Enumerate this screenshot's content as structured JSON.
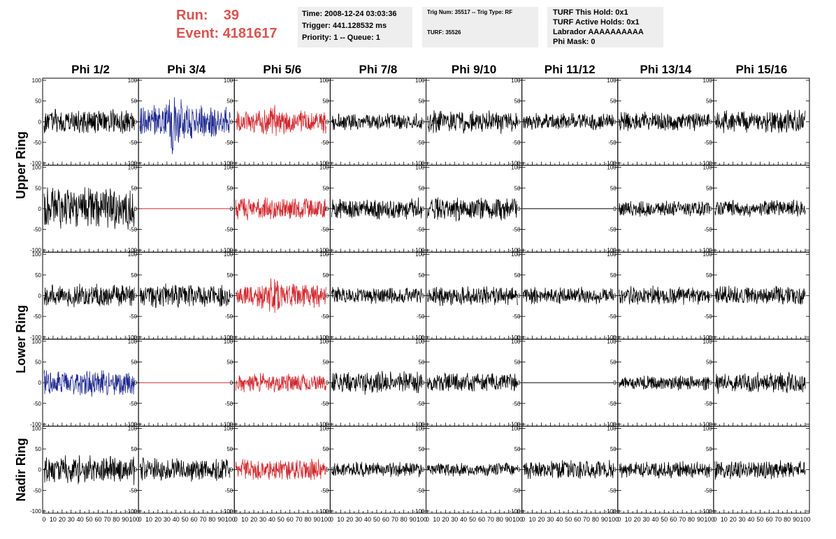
{
  "header": {
    "run_label": "Run:",
    "run_value": "39",
    "event_label": "Event:",
    "event_value": "4181617",
    "time": "Time: 2008-12-24 03:03:36",
    "trigger": "Trigger: 441.128532 ms",
    "priority": "Priority: 1 -- Queue: 1",
    "trig_num": "Trig Num: 35517 -- Trig Type: RF",
    "turf_num": "TURF: 35526",
    "turf_this_hold": "TURF This Hold: 0x1",
    "turf_active_holds": "TURF Active Holds: 0x1",
    "labrador": "Labrador AAAAAAAAAA",
    "phi_mask": "Phi Mask: 0"
  },
  "colors": {
    "accent_red": "#d9534f",
    "trace_black": "#000000",
    "trace_blue": "#1f2a8f",
    "trace_red": "#d0262c",
    "info_box_bg": "#eeeeee"
  },
  "chart_data": {
    "type": "line",
    "columns": [
      "Phi 1/2",
      "Phi 3/4",
      "Phi 5/6",
      "Phi 7/8",
      "Phi 9/10",
      "Phi 11/12",
      "Phi 13/14",
      "Phi 15/16"
    ],
    "row_groups": [
      {
        "label": "Upper Ring",
        "rows": [
          0,
          1
        ]
      },
      {
        "label": "Lower Ring",
        "rows": [
          2,
          3
        ]
      },
      {
        "label": "Nadir Ring",
        "rows": [
          4
        ]
      }
    ],
    "xlim": [
      0,
      100
    ],
    "ylim": [
      -100,
      100
    ],
    "x_tick_labels": [
      "0",
      "10",
      "20",
      "30",
      "40",
      "50",
      "60",
      "70",
      "80",
      "90",
      "100"
    ],
    "y_tick_labels": [
      "100",
      "50",
      "0",
      "-50",
      "-100"
    ],
    "panels": [
      [
        {
          "color": "black",
          "amp": 32,
          "flat": false
        },
        {
          "color": "blue",
          "amp": 45,
          "burst_amp": 85,
          "burst_center": 38,
          "flat": false
        },
        {
          "color": "red",
          "amp": 30,
          "burst_amp": 50,
          "burst_center": 42,
          "flat": false
        },
        {
          "color": "black",
          "amp": 22,
          "flat": false
        },
        {
          "color": "black",
          "amp": 30,
          "flat": false
        },
        {
          "color": "black",
          "amp": 22,
          "flat": false
        },
        {
          "color": "black",
          "amp": 25,
          "flat": false
        },
        {
          "color": "black",
          "amp": 30,
          "flat": false
        }
      ],
      [
        {
          "color": "black",
          "amp": 55,
          "flat": false
        },
        {
          "color": "red",
          "amp": 0,
          "flat": true
        },
        {
          "color": "red",
          "amp": 30,
          "flat": false
        },
        {
          "color": "black",
          "amp": 28,
          "flat": false
        },
        {
          "color": "black",
          "amp": 32,
          "flat": false
        },
        {
          "color": "black",
          "amp": 0,
          "flat": true
        },
        {
          "color": "black",
          "amp": 20,
          "flat": false
        },
        {
          "color": "black",
          "amp": 22,
          "flat": false
        }
      ],
      [
        {
          "color": "black",
          "amp": 30,
          "flat": false
        },
        {
          "color": "black",
          "amp": 32,
          "flat": false
        },
        {
          "color": "red",
          "amp": 32,
          "burst_amp": 55,
          "burst_center": 42,
          "flat": false
        },
        {
          "color": "black",
          "amp": 22,
          "flat": false
        },
        {
          "color": "black",
          "amp": 25,
          "flat": false
        },
        {
          "color": "black",
          "amp": 22,
          "flat": false
        },
        {
          "color": "black",
          "amp": 25,
          "flat": false
        },
        {
          "color": "black",
          "amp": 25,
          "flat": false
        }
      ],
      [
        {
          "color": "blue",
          "amp": 35,
          "flat": false
        },
        {
          "color": "red",
          "amp": 0,
          "flat": true
        },
        {
          "color": "red",
          "amp": 25,
          "flat": false
        },
        {
          "color": "black",
          "amp": 30,
          "flat": false
        },
        {
          "color": "black",
          "amp": 25,
          "flat": false
        },
        {
          "color": "black",
          "amp": 0,
          "flat": true
        },
        {
          "color": "black",
          "amp": 20,
          "flat": false
        },
        {
          "color": "black",
          "amp": 28,
          "flat": false
        }
      ],
      [
        {
          "color": "black",
          "amp": 38,
          "flat": false
        },
        {
          "color": "black",
          "amp": 32,
          "flat": false
        },
        {
          "color": "red",
          "amp": 28,
          "flat": false
        },
        {
          "color": "black",
          "amp": 20,
          "flat": false
        },
        {
          "color": "black",
          "amp": 18,
          "flat": false
        },
        {
          "color": "black",
          "amp": 25,
          "flat": false
        },
        {
          "color": "black",
          "amp": 22,
          "flat": false
        },
        {
          "color": "black",
          "amp": 25,
          "flat": false
        }
      ]
    ]
  }
}
